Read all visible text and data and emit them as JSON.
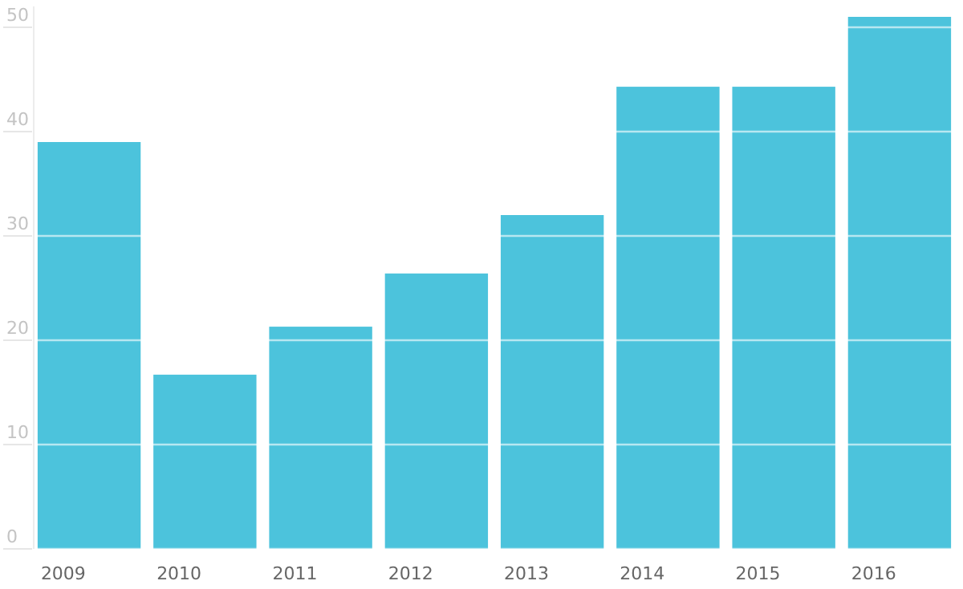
{
  "chart_data": {
    "type": "bar",
    "categories": [
      "2009",
      "2010",
      "2011",
      "2012",
      "2013",
      "2014",
      "2015",
      "2016"
    ],
    "values": [
      39,
      16.7,
      21.3,
      26.4,
      32,
      44.3,
      44.3,
      51
    ],
    "color": "#4cc3dc",
    "ylim": [
      0,
      52
    ],
    "yticks": [
      0,
      10,
      20,
      30,
      40,
      50
    ],
    "grid": "y"
  }
}
